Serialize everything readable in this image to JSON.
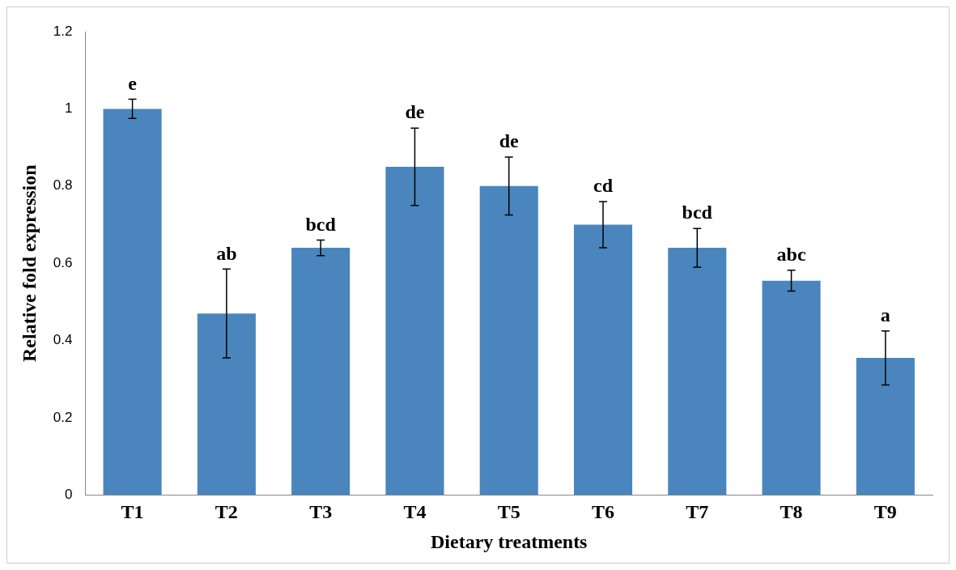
{
  "chart_data": {
    "type": "bar",
    "xlabel": "Dietary treatments",
    "ylabel": "Relative fold expression",
    "categories": [
      "T1",
      "T2",
      "T3",
      "T4",
      "T5",
      "T6",
      "T7",
      "T8",
      "T9"
    ],
    "values": [
      1.0,
      0.47,
      0.64,
      0.85,
      0.8,
      0.7,
      0.64,
      0.555,
      0.355
    ],
    "errors": [
      0.025,
      0.115,
      0.02,
      0.1,
      0.075,
      0.06,
      0.05,
      0.027,
      0.07
    ],
    "color": "#4a86bd",
    "ylim": [
      0,
      1.2
    ],
    "yticks": [
      0,
      0.2,
      0.4,
      0.6,
      0.8,
      1,
      1.2
    ],
    "grid": false,
    "legend": false,
    "annotations": [
      {
        "text": "e",
        "x": "T1",
        "y": 1.025
      },
      {
        "text": "ab",
        "x": "T2",
        "y": 0.585
      },
      {
        "text": "bcd",
        "x": "T3",
        "y": 0.66
      },
      {
        "text": "de",
        "x": "T4",
        "y": 0.95
      },
      {
        "text": "de",
        "x": "T5",
        "y": 0.875
      },
      {
        "text": "cd",
        "x": "T6",
        "y": 0.76
      },
      {
        "text": "bcd",
        "x": "T7",
        "y": 0.69
      },
      {
        "text": "abc",
        "x": "T8",
        "y": 0.582
      },
      {
        "text": "a",
        "x": "T9",
        "y": 0.425
      }
    ]
  }
}
